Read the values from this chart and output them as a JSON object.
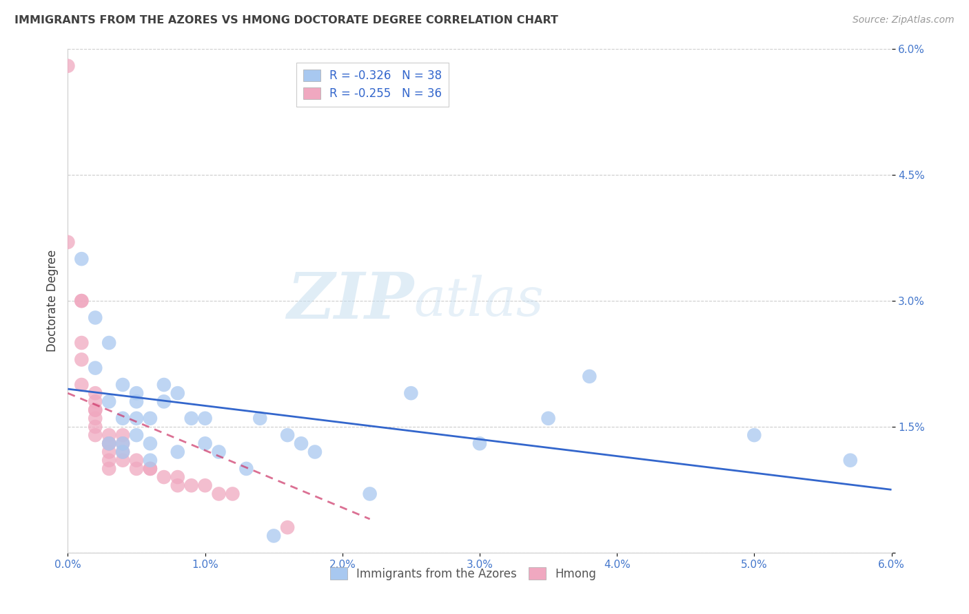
{
  "title": "IMMIGRANTS FROM THE AZORES VS HMONG DOCTORATE DEGREE CORRELATION CHART",
  "source": "Source: ZipAtlas.com",
  "ylabel": "Doctorate Degree",
  "xlim": [
    0.0,
    0.06
  ],
  "ylim": [
    0.0,
    0.06
  ],
  "x_ticks": [
    0.0,
    0.01,
    0.02,
    0.03,
    0.04,
    0.05,
    0.06
  ],
  "y_ticks": [
    0.0,
    0.015,
    0.03,
    0.045,
    0.06
  ],
  "y_tick_labels": [
    "",
    "1.5%",
    "3.0%",
    "4.5%",
    "6.0%"
  ],
  "x_tick_labels": [
    "0.0%",
    "1.0%",
    "2.0%",
    "3.0%",
    "4.0%",
    "5.0%",
    "6.0%"
  ],
  "legend_line1": "R = -0.326   N = 38",
  "legend_line2": "R = -0.255   N = 36",
  "legend_labels": [
    "Immigrants from the Azores",
    "Hmong"
  ],
  "watermark_zip": "ZIP",
  "watermark_atlas": "atlas",
  "azores_color": "#a8c8f0",
  "hmong_color": "#f0a8c0",
  "azores_line_color": "#3366cc",
  "hmong_line_color": "#cc3366",
  "azores_scatter": [
    [
      0.001,
      0.035
    ],
    [
      0.002,
      0.022
    ],
    [
      0.002,
      0.028
    ],
    [
      0.003,
      0.013
    ],
    [
      0.003,
      0.018
    ],
    [
      0.003,
      0.025
    ],
    [
      0.004,
      0.012
    ],
    [
      0.004,
      0.016
    ],
    [
      0.004,
      0.013
    ],
    [
      0.004,
      0.02
    ],
    [
      0.005,
      0.016
    ],
    [
      0.005,
      0.014
    ],
    [
      0.005,
      0.018
    ],
    [
      0.005,
      0.019
    ],
    [
      0.006,
      0.013
    ],
    [
      0.006,
      0.011
    ],
    [
      0.006,
      0.016
    ],
    [
      0.007,
      0.02
    ],
    [
      0.007,
      0.018
    ],
    [
      0.008,
      0.019
    ],
    [
      0.008,
      0.012
    ],
    [
      0.009,
      0.016
    ],
    [
      0.01,
      0.016
    ],
    [
      0.01,
      0.013
    ],
    [
      0.011,
      0.012
    ],
    [
      0.013,
      0.01
    ],
    [
      0.014,
      0.016
    ],
    [
      0.015,
      0.002
    ],
    [
      0.016,
      0.014
    ],
    [
      0.017,
      0.013
    ],
    [
      0.018,
      0.012
    ],
    [
      0.022,
      0.007
    ],
    [
      0.025,
      0.019
    ],
    [
      0.03,
      0.013
    ],
    [
      0.035,
      0.016
    ],
    [
      0.038,
      0.021
    ],
    [
      0.05,
      0.014
    ],
    [
      0.057,
      0.011
    ]
  ],
  "hmong_scatter": [
    [
      0.0,
      0.058
    ],
    [
      0.0,
      0.037
    ],
    [
      0.001,
      0.03
    ],
    [
      0.001,
      0.03
    ],
    [
      0.001,
      0.025
    ],
    [
      0.001,
      0.023
    ],
    [
      0.001,
      0.02
    ],
    [
      0.002,
      0.019
    ],
    [
      0.002,
      0.018
    ],
    [
      0.002,
      0.017
    ],
    [
      0.002,
      0.017
    ],
    [
      0.002,
      0.016
    ],
    [
      0.002,
      0.015
    ],
    [
      0.002,
      0.014
    ],
    [
      0.003,
      0.014
    ],
    [
      0.003,
      0.013
    ],
    [
      0.003,
      0.013
    ],
    [
      0.003,
      0.012
    ],
    [
      0.003,
      0.011
    ],
    [
      0.003,
      0.01
    ],
    [
      0.004,
      0.014
    ],
    [
      0.004,
      0.013
    ],
    [
      0.004,
      0.012
    ],
    [
      0.004,
      0.011
    ],
    [
      0.005,
      0.011
    ],
    [
      0.005,
      0.01
    ],
    [
      0.006,
      0.01
    ],
    [
      0.006,
      0.01
    ],
    [
      0.007,
      0.009
    ],
    [
      0.008,
      0.009
    ],
    [
      0.008,
      0.008
    ],
    [
      0.009,
      0.008
    ],
    [
      0.01,
      0.008
    ],
    [
      0.011,
      0.007
    ],
    [
      0.012,
      0.007
    ],
    [
      0.016,
      0.003
    ]
  ],
  "azores_trendline_x": [
    0.0,
    0.06
  ],
  "azores_trendline_y": [
    0.0195,
    0.0075
  ],
  "hmong_trendline_x": [
    0.0,
    0.022
  ],
  "hmong_trendline_y": [
    0.019,
    0.004
  ],
  "background_color": "#ffffff",
  "grid_color": "#cccccc",
  "title_color": "#404040",
  "tick_label_color": "#4477cc"
}
